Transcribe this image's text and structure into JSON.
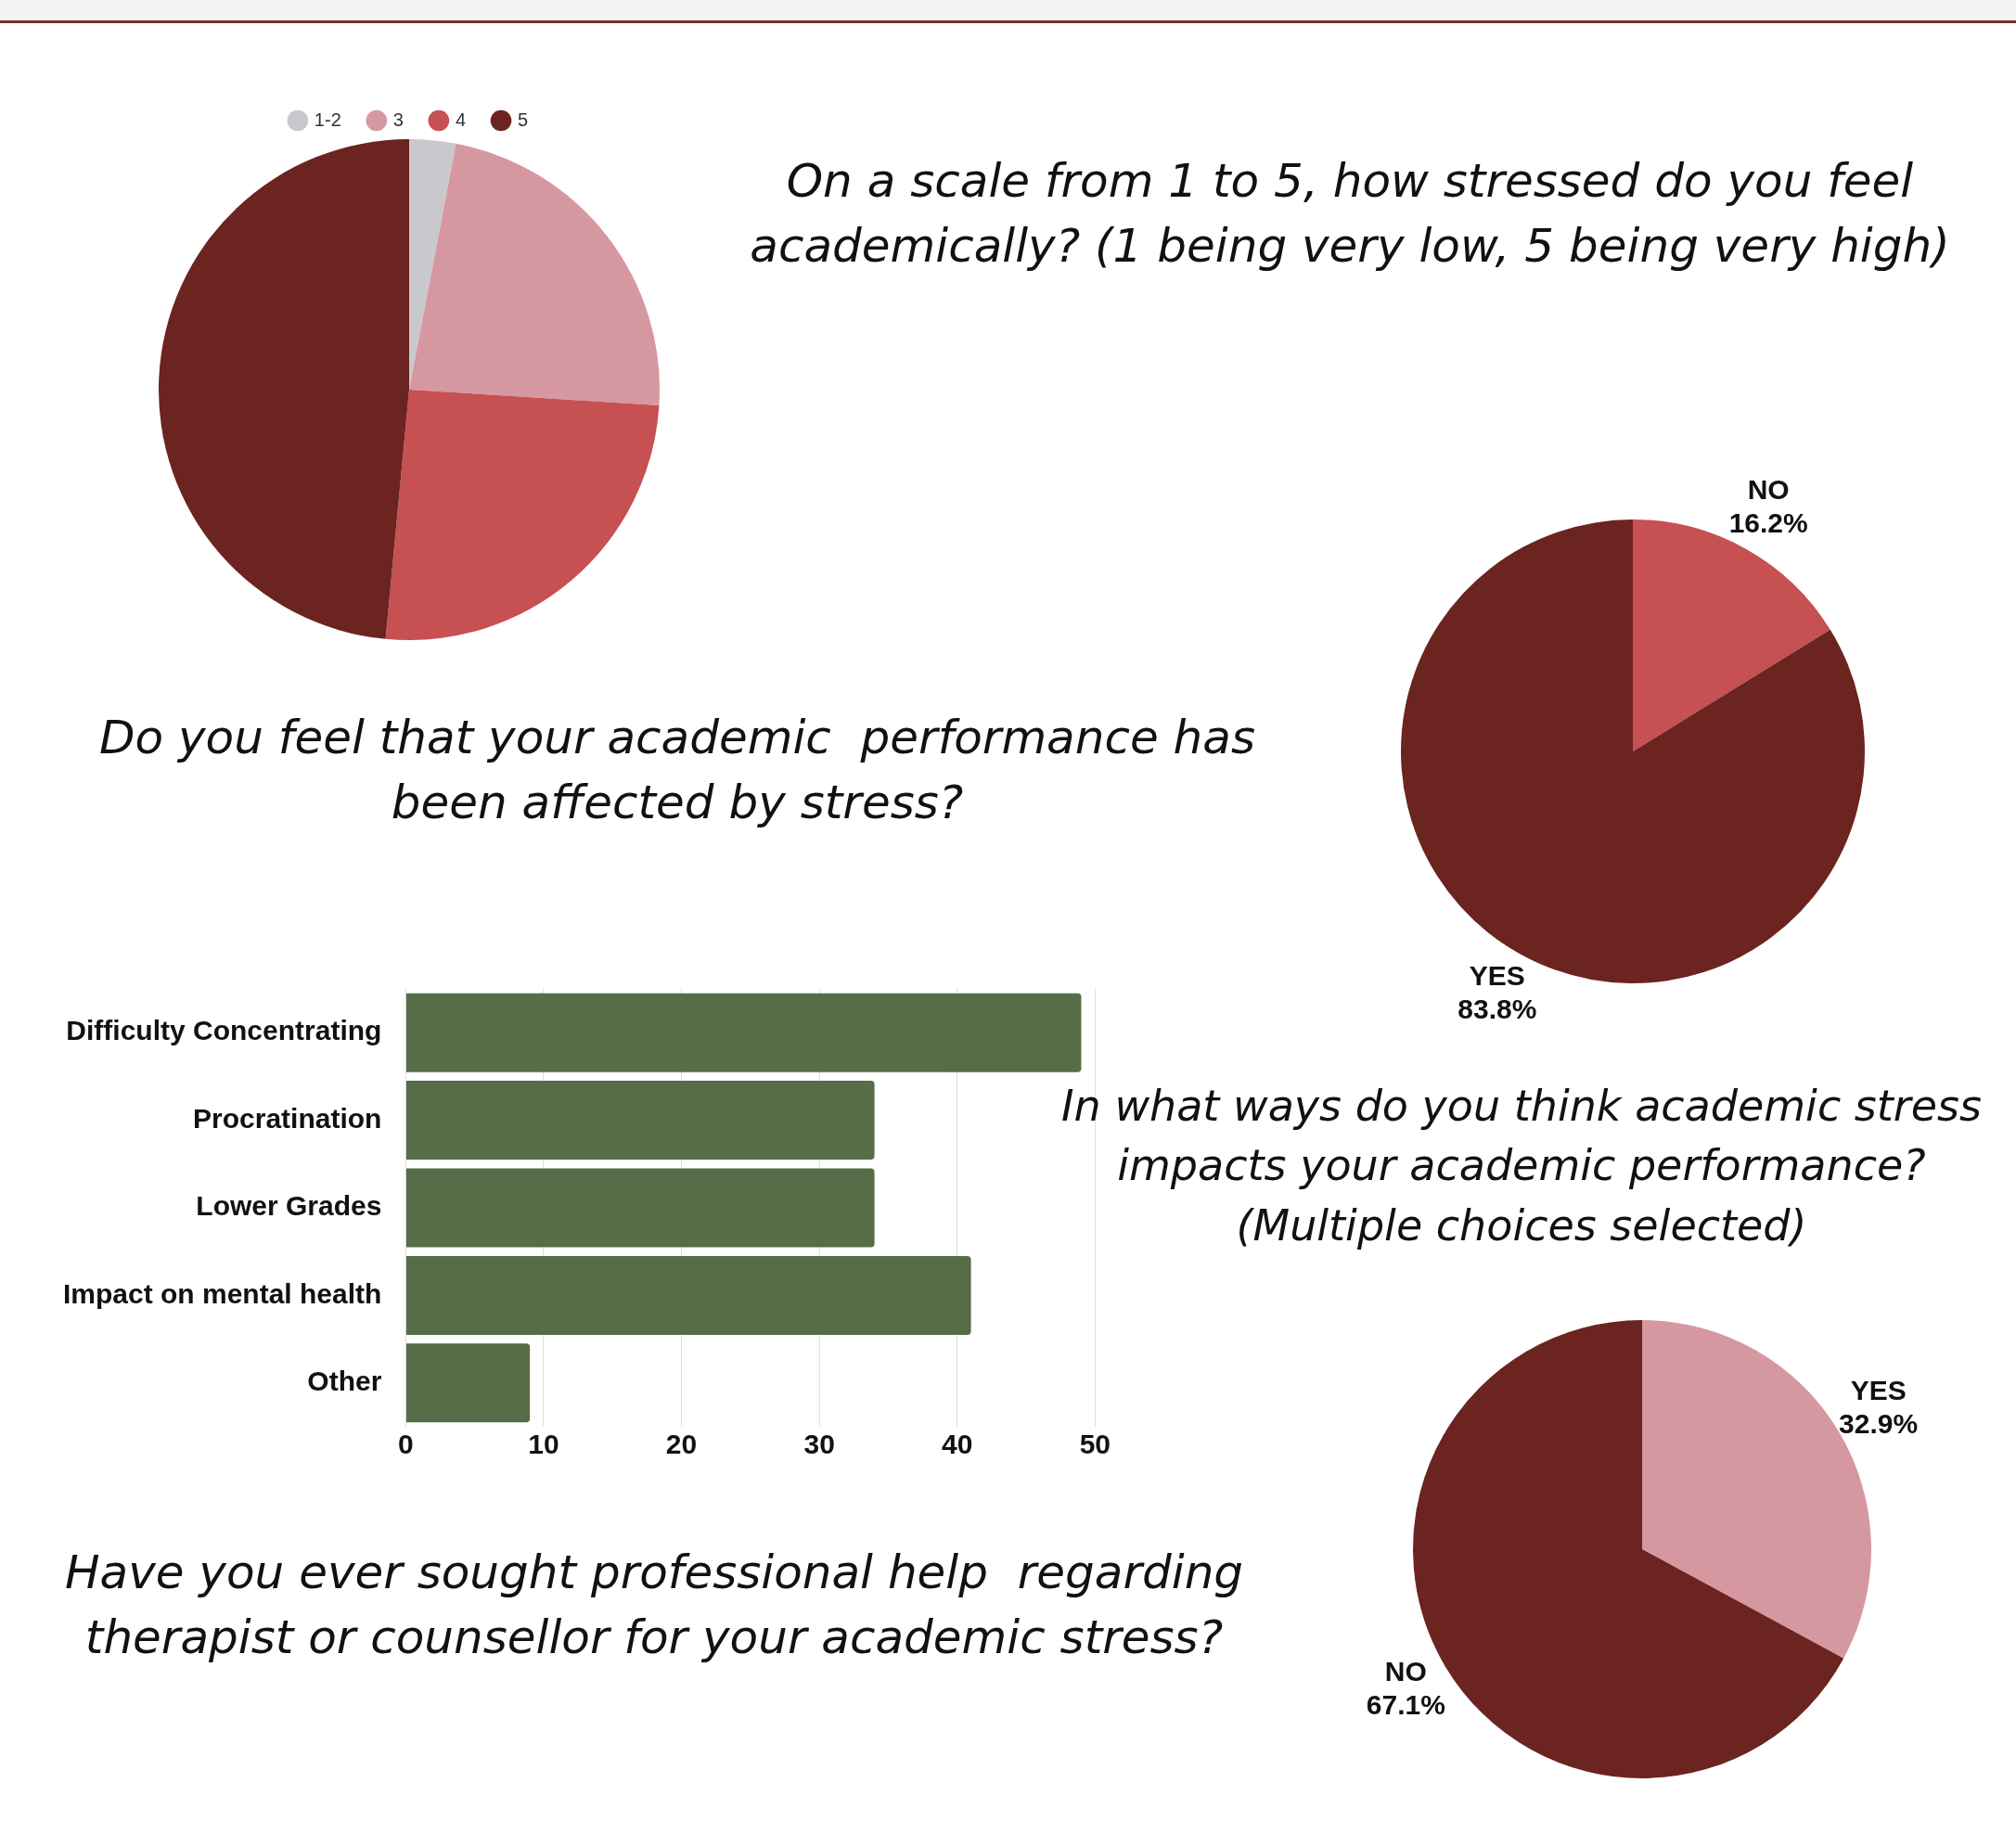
{
  "chart_data": [
    {
      "type": "pie",
      "title": "On a scale from 1 to 5, how stressed do you feel academically? (1 being very low, 5 being very high)",
      "categories": [
        "1-2",
        "3",
        "4",
        "5"
      ],
      "values": [
        3,
        23,
        25.5,
        48.5
      ],
      "colors": [
        "#c9c8cd",
        "#d698a0",
        "#c65052",
        "#6b2420"
      ],
      "legend": "top"
    },
    {
      "type": "pie",
      "title": "Do you feel that your academic  performance has been affected by stress?",
      "categories": [
        "NO",
        "YES"
      ],
      "values": [
        16.2,
        83.8
      ],
      "colors": [
        "#c65052",
        "#6b2420"
      ],
      "value_labels": [
        "16.2%",
        "83.8%"
      ]
    },
    {
      "type": "bar",
      "title": "In what ways do you think academic stress impacts your academic performance? (Multiple choices selected)",
      "categories": [
        "Difficulty Concentrating",
        "Procratination",
        "Lower Grades",
        "Impact on mental health",
        "Other"
      ],
      "values": [
        49,
        34,
        34,
        41,
        9
      ],
      "color": "#566d47",
      "orientation": "horizontal",
      "xlim": [
        0,
        50
      ],
      "xticks": [
        0,
        10,
        20,
        30,
        40,
        50
      ],
      "grid": "x"
    },
    {
      "type": "pie",
      "title": "Have you ever sought professional help  regarding therapist or counsellor for your academic stress?",
      "categories": [
        "YES",
        "NO"
      ],
      "values": [
        32.9,
        67.1
      ],
      "colors": [
        "#d698a0",
        "#6b2420"
      ],
      "value_labels": [
        "32.9%",
        "67.1%"
      ]
    }
  ]
}
